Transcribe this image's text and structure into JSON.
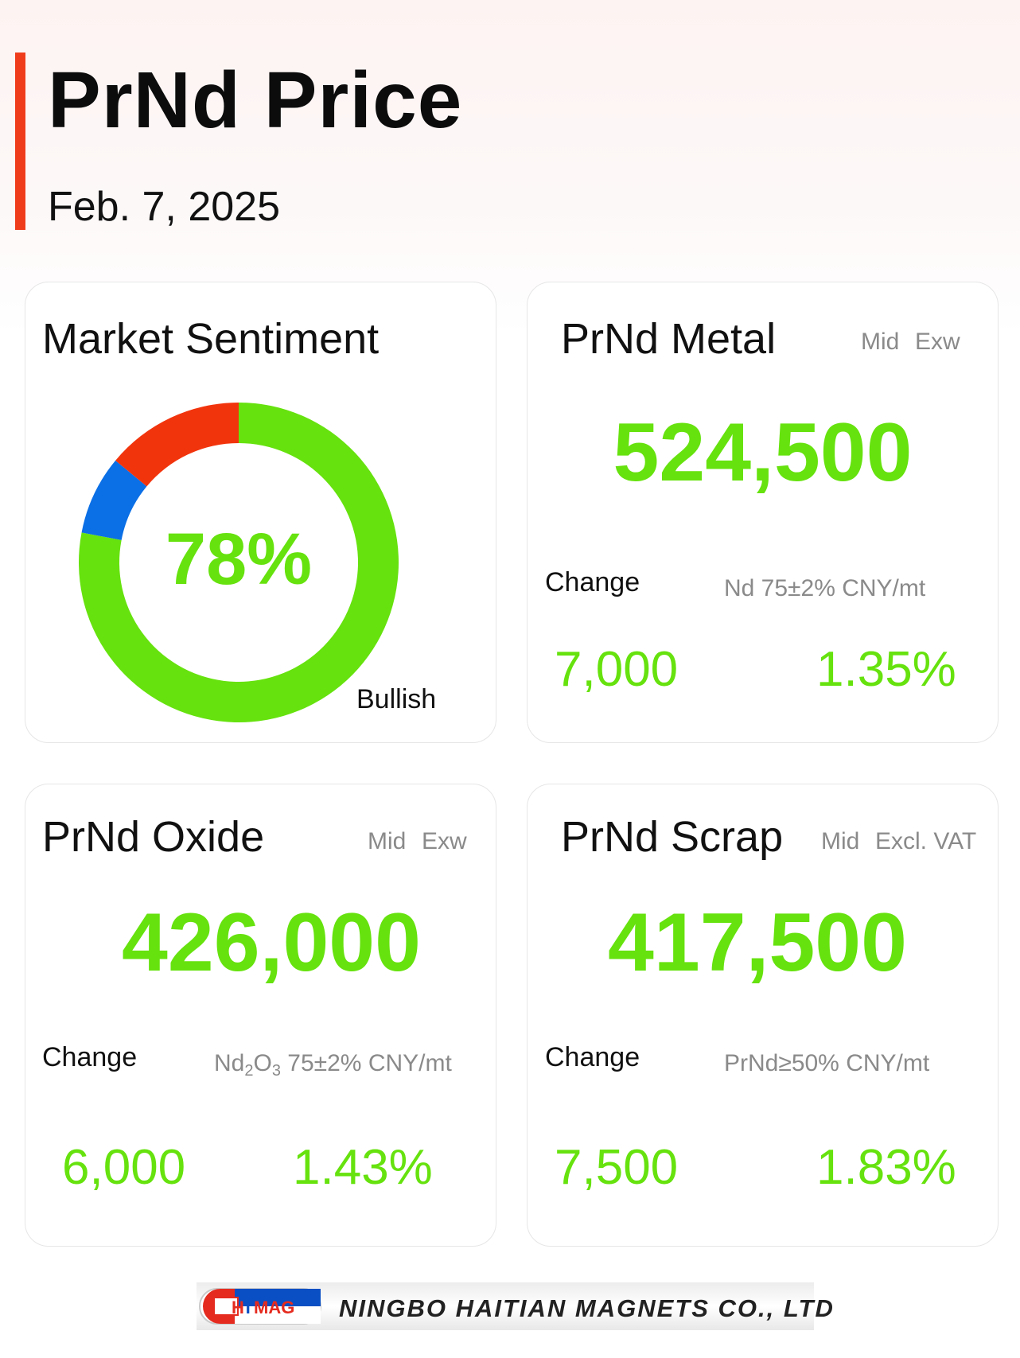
{
  "header": {
    "title": "PrNd Price",
    "date": "Feb. 7, 2025"
  },
  "colors": {
    "accent": "#ef3d1c",
    "green": "#66e20e",
    "blue": "#0b6fe6",
    "red": "#f2340d"
  },
  "sentiment": {
    "title": "Market Sentiment",
    "value_label": "78%",
    "label": "Bullish",
    "segments": [
      {
        "key": "bullish",
        "value": 0.78,
        "color": "#66e20e"
      },
      {
        "key": "neutral",
        "value": 0.08,
        "color": "#0b6fe6"
      },
      {
        "key": "bearish",
        "value": 0.14,
        "color": "#f2340d"
      }
    ]
  },
  "metal": {
    "title": "PrNd Metal",
    "tag_mid": "Mid",
    "tag_basis": "Exw",
    "price": "524,500",
    "change_label": "Change",
    "spec": "Nd 75±2% CNY/mt",
    "change_abs": "7,000",
    "change_pct": "1.35%"
  },
  "oxide": {
    "title": "PrNd Oxide",
    "tag_mid": "Mid",
    "tag_basis": "Exw",
    "price": "426,000",
    "change_label": "Change",
    "spec_prefix": "Nd",
    "spec_sub1": "2",
    "spec_mid": "O",
    "spec_sub2": "3",
    "spec_suffix": " 75±2% CNY/mt",
    "change_abs": "6,000",
    "change_pct": "1.43%"
  },
  "scrap": {
    "title": "PrNd Scrap",
    "tag_mid": "Mid",
    "tag_basis": "Excl. VAT",
    "price": "417,500",
    "change_label": "Change",
    "spec": "PrNd≥50% CNY/mt",
    "change_abs": "7,500",
    "change_pct": "1.83%"
  },
  "footer": {
    "logo_text": "HTMAG",
    "company": "NINGBO HAITIAN MAGNETS CO., LTD"
  }
}
